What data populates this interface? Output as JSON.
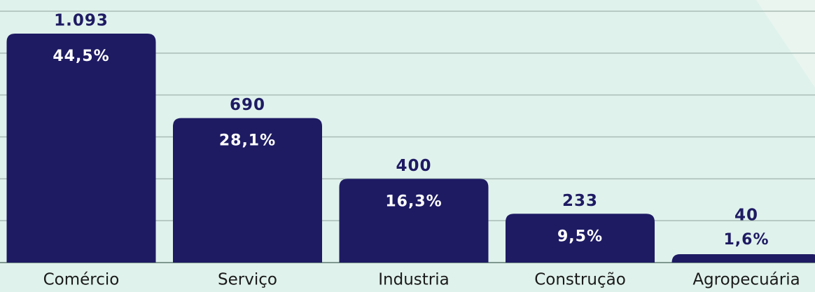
{
  "chart_data": {
    "type": "bar",
    "categories": [
      "Comércio",
      "Serviço",
      "Industria",
      "Construção",
      "Agropecuária"
    ],
    "values": [
      1093,
      690,
      400,
      233,
      40
    ],
    "value_labels": [
      "1.093",
      "690",
      "400",
      "233",
      "40"
    ],
    "shares": [
      44.5,
      28.1,
      16.3,
      9.5,
      1.6
    ],
    "share_labels": [
      "44,5%",
      "28,1%",
      "16,3%",
      "9,5%",
      "1,6%"
    ],
    "color": "#1e1b63",
    "ylim": [
      0,
      1200
    ],
    "yticks": [
      0,
      200,
      400,
      600,
      800,
      1000,
      1200
    ],
    "grid": true
  }
}
